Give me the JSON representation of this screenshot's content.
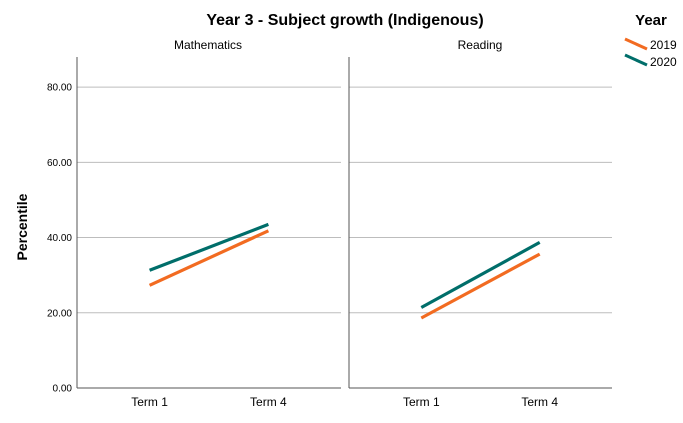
{
  "chart_data": {
    "type": "line",
    "title": "Year 3 - Subject growth (Indigenous)",
    "ylabel": "Percentile",
    "ylim": [
      0,
      88
    ],
    "yticks": [
      "0.00",
      "20.00",
      "40.00",
      "60.00",
      "80.00"
    ],
    "categories": [
      "Term 1",
      "Term 4"
    ],
    "grid": true,
    "legend": {
      "title": "Year",
      "position": "top-right",
      "items": [
        {
          "name": "2019",
          "color": "#f26b21"
        },
        {
          "name": "2020",
          "color": "#006e6a"
        }
      ]
    },
    "panels": [
      {
        "title": "Mathematics",
        "series": [
          {
            "name": "2019",
            "values": [
              27.3,
              41.8
            ]
          },
          {
            "name": "2020",
            "values": [
              31.3,
              43.5
            ]
          }
        ]
      },
      {
        "title": "Reading",
        "series": [
          {
            "name": "2019",
            "values": [
              18.6,
              35.6
            ]
          },
          {
            "name": "2020",
            "values": [
              21.4,
              38.7
            ]
          }
        ]
      }
    ]
  }
}
